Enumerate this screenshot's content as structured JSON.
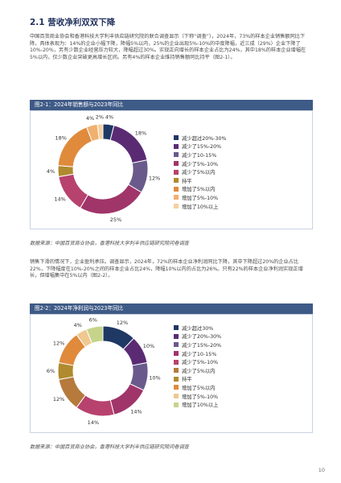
{
  "section": {
    "title": "2.1 营收净利双双下降"
  },
  "paragraph1": "中国百货商业协会和香港科技大学利丰供应链研究院的联合调查显示（下称“调查”），2024年，73%的样本企业销售额同比下降，具体表现为：14%的企业小幅下降，降幅5%以内，25%的企业出现5%-10%的中度降幅，近三成（29%）企业下降了10%-20%，另有少数企业经营压力较大，降幅超过30%。实现正向增长的样本企业占比为24%，其中18%的样本企业增幅在5%以内，仅少数企业突破更高增长区间。另有4%的样本企业维持销售额同比持平（图2-1）。",
  "paragraph2": "销售下滑的情况下，企业盈利承压。调查显示，2024年，72%的样本企业净利润同比下降，其中下降超过20%的企业占比22%，下降幅度在10%-20%之间的样本企业占比24%，降幅10%以内的占比为26%。只有22%的样本企业净利润实现正增长，但增幅集中在5%以内（图2-2）。",
  "figure1": {
    "title": "图2-1：2024年销售额与2023年同比"
  },
  "figure2": {
    "title": "图2-2：2024年净利润与2023年同比"
  },
  "source": "数据来源：中国百货商业协会，香港科技大学利丰供应链研究院问卷调查",
  "page_number": "10",
  "chart_data": [
    {
      "type": "pie",
      "title": "图2-1：2024年销售额与2023年同比",
      "donut": true,
      "categories": [
        "减少超过20%-30%",
        "减少了15%-20%",
        "减少了10-15%",
        "减少了5%-10%",
        "减少了5%以内",
        "持平",
        "增加了5%以内",
        "增加了5%-10%",
        "增加了10%以上"
      ],
      "values": [
        4,
        18,
        12,
        25,
        14,
        4,
        18,
        4,
        2
      ],
      "value_labels": [
        "4%",
        "18%",
        "12%",
        "25%",
        "14%",
        "4%",
        "18%",
        "4%",
        "2%"
      ],
      "colors": [
        "#1f3864",
        "#5a2b73",
        "#6a5a8c",
        "#a0356a",
        "#b7426e",
        "#b08a2e",
        "#e08a3c",
        "#f0b070",
        "#f6cfa0"
      ],
      "legend": "right"
    },
    {
      "type": "pie",
      "title": "图2-2：2024年净利润与2023年同比",
      "donut": true,
      "categories": [
        "减少超过30%",
        "减少了20%-30%",
        "减少了15%-20%",
        "减少了10-15%",
        "减少了5%-10%",
        "减少了5%以内",
        "持平",
        "增加了5%以内",
        "增加了5%-10%",
        "增加了10%以上"
      ],
      "values": [
        12,
        10,
        10,
        14,
        14,
        12,
        6,
        12,
        4,
        6
      ],
      "value_labels": [
        "12%",
        "10%",
        "10%",
        "14%",
        "14%",
        "12%",
        "6%",
        "12%",
        "4%",
        "6%"
      ],
      "colors": [
        "#1f3864",
        "#5a2b73",
        "#6a5a8c",
        "#a0356a",
        "#b7426e",
        "#b57a3c",
        "#b08a2e",
        "#e08a3c",
        "#f0c890",
        "#c6d48a"
      ],
      "legend": "right"
    }
  ]
}
